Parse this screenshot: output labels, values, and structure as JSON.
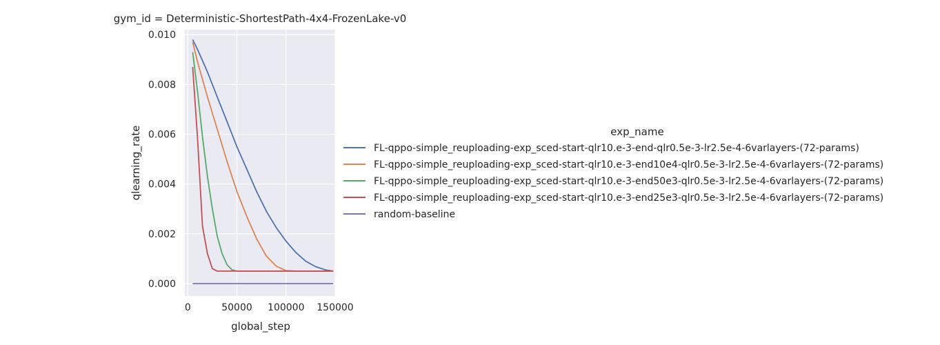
{
  "chart_data": {
    "type": "line",
    "title": "gym_id = Deterministic-ShortestPath-4x4-FrozenLake-v0",
    "xlabel": "global_step",
    "ylabel": "qlearning_rate",
    "xlim": [
      -3000,
      150000
    ],
    "ylim": [
      -0.0005,
      0.0102
    ],
    "xticks": [
      0,
      50000,
      100000,
      150000
    ],
    "xtick_labels": [
      "0",
      "50000",
      "100000",
      "150000"
    ],
    "yticks": [
      0.0,
      0.002,
      0.004,
      0.006,
      0.008,
      0.01
    ],
    "ytick_labels": [
      "0.000",
      "0.002",
      "0.004",
      "0.006",
      "0.008",
      "0.010"
    ],
    "grid": true,
    "background": "#eaeaf2",
    "legend": {
      "title": "exp_name",
      "placement": "right"
    },
    "series": [
      {
        "name": "FL-qppo-simple_reuploading-exp_sced-start-qlr10.e-3-end-qlr0.5e-3-lr2.5e-4-6varlayers-(72-params)",
        "color": "#4c72b0",
        "x": [
          5000,
          10000,
          20000,
          30000,
          40000,
          50000,
          60000,
          70000,
          80000,
          90000,
          100000,
          110000,
          120000,
          130000,
          140000,
          148000
        ],
        "y": [
          0.0098,
          0.0094,
          0.0085,
          0.0075,
          0.0065,
          0.0055,
          0.0046,
          0.0037,
          0.0029,
          0.00225,
          0.0017,
          0.00125,
          0.0009,
          0.00068,
          0.00055,
          0.0005
        ]
      },
      {
        "name": "FL-qppo-simple_reuploading-exp_sced-start-qlr10.e-3-end10e4-qlr0.5e-3-lr2.5e-4-6varlayers-(72-params)",
        "color": "#dd8452",
        "x": [
          5000,
          10000,
          20000,
          30000,
          40000,
          50000,
          60000,
          70000,
          80000,
          90000,
          100000,
          110000,
          148000
        ],
        "y": [
          0.0097,
          0.0089,
          0.0075,
          0.0062,
          0.0049,
          0.0037,
          0.0027,
          0.0018,
          0.0011,
          0.0007,
          0.00052,
          0.0005,
          0.0005
        ]
      },
      {
        "name": "FL-qppo-simple_reuploading-exp_sced-start-qlr10.e-3-end50e3-qlr0.5e-3-lr2.5e-4-6varlayers-(72-params)",
        "color": "#55a868",
        "x": [
          5000,
          10000,
          15000,
          20000,
          25000,
          30000,
          35000,
          40000,
          45000,
          50000,
          55000,
          148000
        ],
        "y": [
          0.0093,
          0.0077,
          0.0059,
          0.0043,
          0.003,
          0.0019,
          0.0012,
          0.00075,
          0.00055,
          0.0005,
          0.0005,
          0.0005
        ]
      },
      {
        "name": "FL-qppo-simple_reuploading-exp_sced-start-qlr10.e-3-end25e3-qlr0.5e-3-lr2.5e-4-6varlayers-(72-params)",
        "color": "#c44e52",
        "x": [
          5000,
          10000,
          15000,
          20000,
          25000,
          30000,
          148000
        ],
        "y": [
          0.0087,
          0.0058,
          0.0023,
          0.0012,
          0.0006,
          0.0005,
          0.0005
        ]
      },
      {
        "name": "random-baseline",
        "color": "#8172b3",
        "x": [
          5000,
          148000
        ],
        "y": [
          0.0,
          0.0
        ]
      }
    ]
  }
}
